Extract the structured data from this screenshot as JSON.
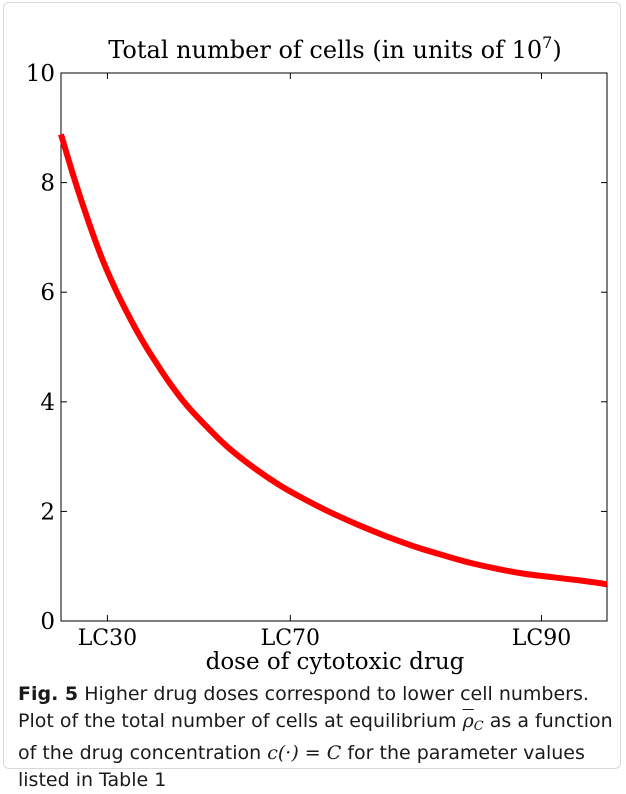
{
  "figure": {
    "fig_label": "Fig. 5",
    "caption_lead": "Higher drug doses correspond to lower cell numbers.",
    "caption_p1": "Plot of the total number of cells at equilibrium",
    "caption_symbol": "ρ",
    "caption_symbol_sub": "C",
    "caption_p2": "as a function of the drug concentration",
    "caption_expr_lhs": "c(·)",
    "caption_expr_eq": " = ",
    "caption_expr_rhs": "C",
    "caption_p3": "for the parameter values listed in Table 1"
  },
  "chart_data": {
    "type": "line",
    "title": "Total number of cells (in units of 10",
    "title_exponent": "7",
    "title_close": ")",
    "xlabel": "dose of cytotoxic drug",
    "ylabel": "",
    "x_range": [
      0,
      100
    ],
    "ylim": [
      0,
      10
    ],
    "x_ticks": [
      {
        "x": 8.5,
        "label": "LC30"
      },
      {
        "x": 42,
        "label": "LC70"
      },
      {
        "x": 88,
        "label": "LC90"
      }
    ],
    "y_ticks": [
      0,
      2,
      4,
      6,
      8,
      10
    ],
    "grid": false,
    "series": [
      {
        "color": "#ff0000",
        "x": [
          0,
          2.5,
          5,
          7.5,
          10,
          12.5,
          15,
          17.5,
          20,
          22.5,
          25,
          30,
          35,
          40,
          45,
          50,
          55,
          60,
          65,
          70,
          75,
          80,
          85,
          90,
          95,
          100
        ],
        "y": [
          8.88,
          8.05,
          7.3,
          6.62,
          6.05,
          5.55,
          5.1,
          4.7,
          4.33,
          4.0,
          3.72,
          3.22,
          2.82,
          2.48,
          2.2,
          1.95,
          1.73,
          1.53,
          1.35,
          1.2,
          1.06,
          0.95,
          0.86,
          0.8,
          0.74,
          0.67
        ]
      }
    ]
  }
}
